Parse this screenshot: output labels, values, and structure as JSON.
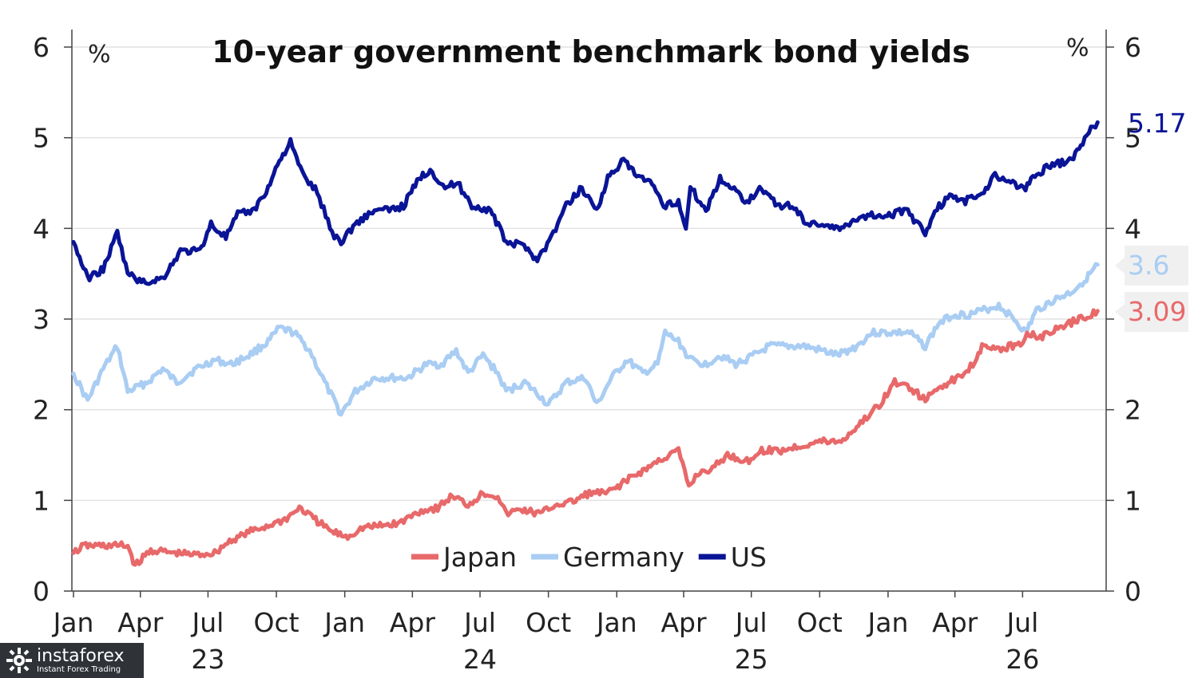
{
  "chart_data": {
    "type": "line",
    "title": "10-year government benchmark bond yields",
    "y_unit_left": "%",
    "y_unit_right": "%",
    "ylim": [
      0,
      6
    ],
    "yticks": [
      0,
      1,
      2,
      3,
      4,
      5,
      6
    ],
    "grid": true,
    "x_month_ticks": [
      "Jan",
      "Apr",
      "Jul",
      "Oct",
      "Jan",
      "Apr",
      "Jul",
      "Oct",
      "Jan",
      "Apr",
      "Jul",
      "Oct",
      "Jan",
      "Apr",
      "Jul"
    ],
    "x_year_labels": [
      "23",
      "24",
      "25",
      "26"
    ],
    "xlim": [
      "2023-01-01",
      "2026-10-15"
    ],
    "legend": {
      "placement": "bottom-center",
      "entries": [
        "Japan",
        "Germany",
        "US"
      ]
    },
    "series": [
      {
        "name": "US",
        "color": "#0a1496",
        "last_value_label": "5.17",
        "points": [
          [
            "2023-01-01",
            3.85
          ],
          [
            "2023-01-20",
            3.45
          ],
          [
            "2023-02-10",
            3.55
          ],
          [
            "2023-03-01",
            3.95
          ],
          [
            "2023-03-15",
            3.5
          ],
          [
            "2023-04-05",
            3.4
          ],
          [
            "2023-05-01",
            3.45
          ],
          [
            "2023-05-25",
            3.75
          ],
          [
            "2023-06-20",
            3.75
          ],
          [
            "2023-07-05",
            4.05
          ],
          [
            "2023-07-25",
            3.9
          ],
          [
            "2023-08-10",
            4.15
          ],
          [
            "2023-09-01",
            4.2
          ],
          [
            "2023-09-20",
            4.45
          ],
          [
            "2023-10-05",
            4.75
          ],
          [
            "2023-10-20",
            4.95
          ],
          [
            "2023-11-05",
            4.6
          ],
          [
            "2023-11-25",
            4.4
          ],
          [
            "2023-12-15",
            3.95
          ],
          [
            "2023-12-27",
            3.85
          ],
          [
            "2024-01-15",
            4.05
          ],
          [
            "2024-02-10",
            4.2
          ],
          [
            "2024-03-01",
            4.2
          ],
          [
            "2024-03-20",
            4.25
          ],
          [
            "2024-04-10",
            4.55
          ],
          [
            "2024-04-25",
            4.65
          ],
          [
            "2024-05-15",
            4.45
          ],
          [
            "2024-06-01",
            4.5
          ],
          [
            "2024-06-20",
            4.25
          ],
          [
            "2024-07-15",
            4.2
          ],
          [
            "2024-08-05",
            3.85
          ],
          [
            "2024-09-01",
            3.8
          ],
          [
            "2024-09-16",
            3.65
          ],
          [
            "2024-10-05",
            3.9
          ],
          [
            "2024-10-25",
            4.25
          ],
          [
            "2024-11-15",
            4.45
          ],
          [
            "2024-12-05",
            4.2
          ],
          [
            "2024-12-20",
            4.55
          ],
          [
            "2025-01-10",
            4.75
          ],
          [
            "2025-01-25",
            4.6
          ],
          [
            "2025-02-15",
            4.5
          ],
          [
            "2025-03-05",
            4.25
          ],
          [
            "2025-03-25",
            4.3
          ],
          [
            "2025-04-04",
            4.0
          ],
          [
            "2025-04-10",
            4.45
          ],
          [
            "2025-05-01",
            4.2
          ],
          [
            "2025-05-20",
            4.55
          ],
          [
            "2025-06-05",
            4.45
          ],
          [
            "2025-06-25",
            4.3
          ],
          [
            "2025-07-15",
            4.45
          ],
          [
            "2025-08-05",
            4.25
          ],
          [
            "2025-08-25",
            4.25
          ],
          [
            "2025-09-15",
            4.05
          ],
          [
            "2025-10-10",
            4.05
          ],
          [
            "2025-10-28",
            3.98
          ],
          [
            "2025-11-15",
            4.1
          ],
          [
            "2025-12-10",
            4.15
          ],
          [
            "2026-01-05",
            4.15
          ],
          [
            "2026-01-25",
            4.2
          ],
          [
            "2026-02-10",
            4.05
          ],
          [
            "2026-02-20",
            3.95
          ],
          [
            "2026-03-05",
            4.2
          ],
          [
            "2026-03-25",
            4.35
          ],
          [
            "2026-04-15",
            4.3
          ],
          [
            "2026-05-10",
            4.4
          ],
          [
            "2026-05-25",
            4.6
          ],
          [
            "2026-06-15",
            4.5
          ],
          [
            "2026-07-05",
            4.45
          ],
          [
            "2026-07-20",
            4.6
          ],
          [
            "2026-08-10",
            4.7
          ],
          [
            "2026-09-05",
            4.75
          ],
          [
            "2026-09-20",
            4.95
          ],
          [
            "2026-10-01",
            5.1
          ],
          [
            "2026-10-10",
            5.17
          ]
        ]
      },
      {
        "name": "Germany",
        "color": "#a9cdf3",
        "last_value_label": "3.6",
        "points": [
          [
            "2023-01-01",
            2.4
          ],
          [
            "2023-01-20",
            2.1
          ],
          [
            "2023-02-10",
            2.45
          ],
          [
            "2023-03-01",
            2.7
          ],
          [
            "2023-03-15",
            2.2
          ],
          [
            "2023-04-10",
            2.3
          ],
          [
            "2023-05-01",
            2.45
          ],
          [
            "2023-05-20",
            2.3
          ],
          [
            "2023-06-15",
            2.45
          ],
          [
            "2023-07-10",
            2.55
          ],
          [
            "2023-08-01",
            2.5
          ],
          [
            "2023-08-25",
            2.6
          ],
          [
            "2023-09-20",
            2.75
          ],
          [
            "2023-10-05",
            2.9
          ],
          [
            "2023-10-25",
            2.85
          ],
          [
            "2023-11-15",
            2.65
          ],
          [
            "2023-12-05",
            2.3
          ],
          [
            "2023-12-27",
            1.95
          ],
          [
            "2024-01-15",
            2.2
          ],
          [
            "2024-02-10",
            2.35
          ],
          [
            "2024-03-05",
            2.35
          ],
          [
            "2024-03-25",
            2.35
          ],
          [
            "2024-04-20",
            2.5
          ],
          [
            "2024-05-10",
            2.5
          ],
          [
            "2024-05-30",
            2.65
          ],
          [
            "2024-06-15",
            2.4
          ],
          [
            "2024-07-05",
            2.6
          ],
          [
            "2024-07-25",
            2.4
          ],
          [
            "2024-08-05",
            2.2
          ],
          [
            "2024-08-30",
            2.3
          ],
          [
            "2024-09-20",
            2.15
          ],
          [
            "2024-10-01",
            2.05
          ],
          [
            "2024-10-25",
            2.3
          ],
          [
            "2024-11-20",
            2.35
          ],
          [
            "2024-12-05",
            2.05
          ],
          [
            "2024-12-25",
            2.35
          ],
          [
            "2025-01-15",
            2.55
          ],
          [
            "2025-02-05",
            2.4
          ],
          [
            "2025-02-25",
            2.5
          ],
          [
            "2025-03-07",
            2.85
          ],
          [
            "2025-03-25",
            2.75
          ],
          [
            "2025-04-10",
            2.55
          ],
          [
            "2025-04-30",
            2.5
          ],
          [
            "2025-05-20",
            2.6
          ],
          [
            "2025-06-10",
            2.5
          ],
          [
            "2025-07-05",
            2.6
          ],
          [
            "2025-07-25",
            2.7
          ],
          [
            "2025-08-20",
            2.7
          ],
          [
            "2025-09-10",
            2.7
          ],
          [
            "2025-10-05",
            2.65
          ],
          [
            "2025-10-25",
            2.6
          ],
          [
            "2025-11-20",
            2.7
          ],
          [
            "2025-12-10",
            2.85
          ],
          [
            "2026-01-05",
            2.85
          ],
          [
            "2026-01-30",
            2.85
          ],
          [
            "2026-02-20",
            2.7
          ],
          [
            "2026-03-10",
            2.95
          ],
          [
            "2026-03-30",
            3.05
          ],
          [
            "2026-04-20",
            3.05
          ],
          [
            "2026-05-10",
            3.1
          ],
          [
            "2026-05-30",
            3.15
          ],
          [
            "2026-06-20",
            3.0
          ],
          [
            "2026-07-05",
            2.85
          ],
          [
            "2026-07-20",
            3.1
          ],
          [
            "2026-08-10",
            3.2
          ],
          [
            "2026-09-05",
            3.3
          ],
          [
            "2026-09-25",
            3.45
          ],
          [
            "2026-10-10",
            3.6
          ]
        ]
      },
      {
        "name": "Japan",
        "color": "#e8696a",
        "last_value_label": "3.09",
        "points": [
          [
            "2023-01-01",
            0.42
          ],
          [
            "2023-01-15",
            0.5
          ],
          [
            "2023-02-15",
            0.5
          ],
          [
            "2023-03-15",
            0.5
          ],
          [
            "2023-03-25",
            0.28
          ],
          [
            "2023-04-15",
            0.45
          ],
          [
            "2023-05-15",
            0.42
          ],
          [
            "2023-06-15",
            0.4
          ],
          [
            "2023-07-10",
            0.42
          ],
          [
            "2023-07-30",
            0.55
          ],
          [
            "2023-08-25",
            0.65
          ],
          [
            "2023-09-20",
            0.72
          ],
          [
            "2023-10-15",
            0.8
          ],
          [
            "2023-11-01",
            0.92
          ],
          [
            "2023-11-20",
            0.8
          ],
          [
            "2023-12-15",
            0.65
          ],
          [
            "2024-01-05",
            0.6
          ],
          [
            "2024-01-25",
            0.7
          ],
          [
            "2024-02-20",
            0.72
          ],
          [
            "2024-03-15",
            0.75
          ],
          [
            "2024-04-10",
            0.88
          ],
          [
            "2024-05-05",
            0.92
          ],
          [
            "2024-05-25",
            1.05
          ],
          [
            "2024-06-15",
            0.95
          ],
          [
            "2024-07-05",
            1.08
          ],
          [
            "2024-07-25",
            1.05
          ],
          [
            "2024-08-05",
            0.85
          ],
          [
            "2024-08-25",
            0.9
          ],
          [
            "2024-09-20",
            0.85
          ],
          [
            "2024-10-10",
            0.95
          ],
          [
            "2024-11-01",
            0.98
          ],
          [
            "2024-11-25",
            1.08
          ],
          [
            "2024-12-20",
            1.08
          ],
          [
            "2025-01-10",
            1.2
          ],
          [
            "2025-02-10",
            1.35
          ],
          [
            "2025-03-01",
            1.45
          ],
          [
            "2025-03-25",
            1.55
          ],
          [
            "2025-04-08",
            1.15
          ],
          [
            "2025-04-20",
            1.3
          ],
          [
            "2025-05-10",
            1.35
          ],
          [
            "2025-05-30",
            1.5
          ],
          [
            "2025-06-25",
            1.43
          ],
          [
            "2025-07-15",
            1.55
          ],
          [
            "2025-08-10",
            1.55
          ],
          [
            "2025-09-05",
            1.6
          ],
          [
            "2025-10-01",
            1.65
          ],
          [
            "2025-10-30",
            1.65
          ],
          [
            "2025-11-25",
            1.85
          ],
          [
            "2025-12-20",
            2.05
          ],
          [
            "2026-01-10",
            2.3
          ],
          [
            "2026-01-30",
            2.25
          ],
          [
            "2026-02-20",
            2.1
          ],
          [
            "2026-03-10",
            2.25
          ],
          [
            "2026-04-05",
            2.35
          ],
          [
            "2026-04-25",
            2.5
          ],
          [
            "2026-05-10",
            2.75
          ],
          [
            "2026-05-25",
            2.65
          ],
          [
            "2026-06-15",
            2.7
          ],
          [
            "2026-07-01",
            2.75
          ],
          [
            "2026-07-10",
            2.85
          ],
          [
            "2026-07-25",
            2.8
          ],
          [
            "2026-08-20",
            2.9
          ],
          [
            "2026-09-15",
            3.0
          ],
          [
            "2026-10-10",
            3.09
          ]
        ]
      }
    ]
  },
  "watermark": {
    "name": "instaforex",
    "tagline": "Instant Forex Trading"
  }
}
